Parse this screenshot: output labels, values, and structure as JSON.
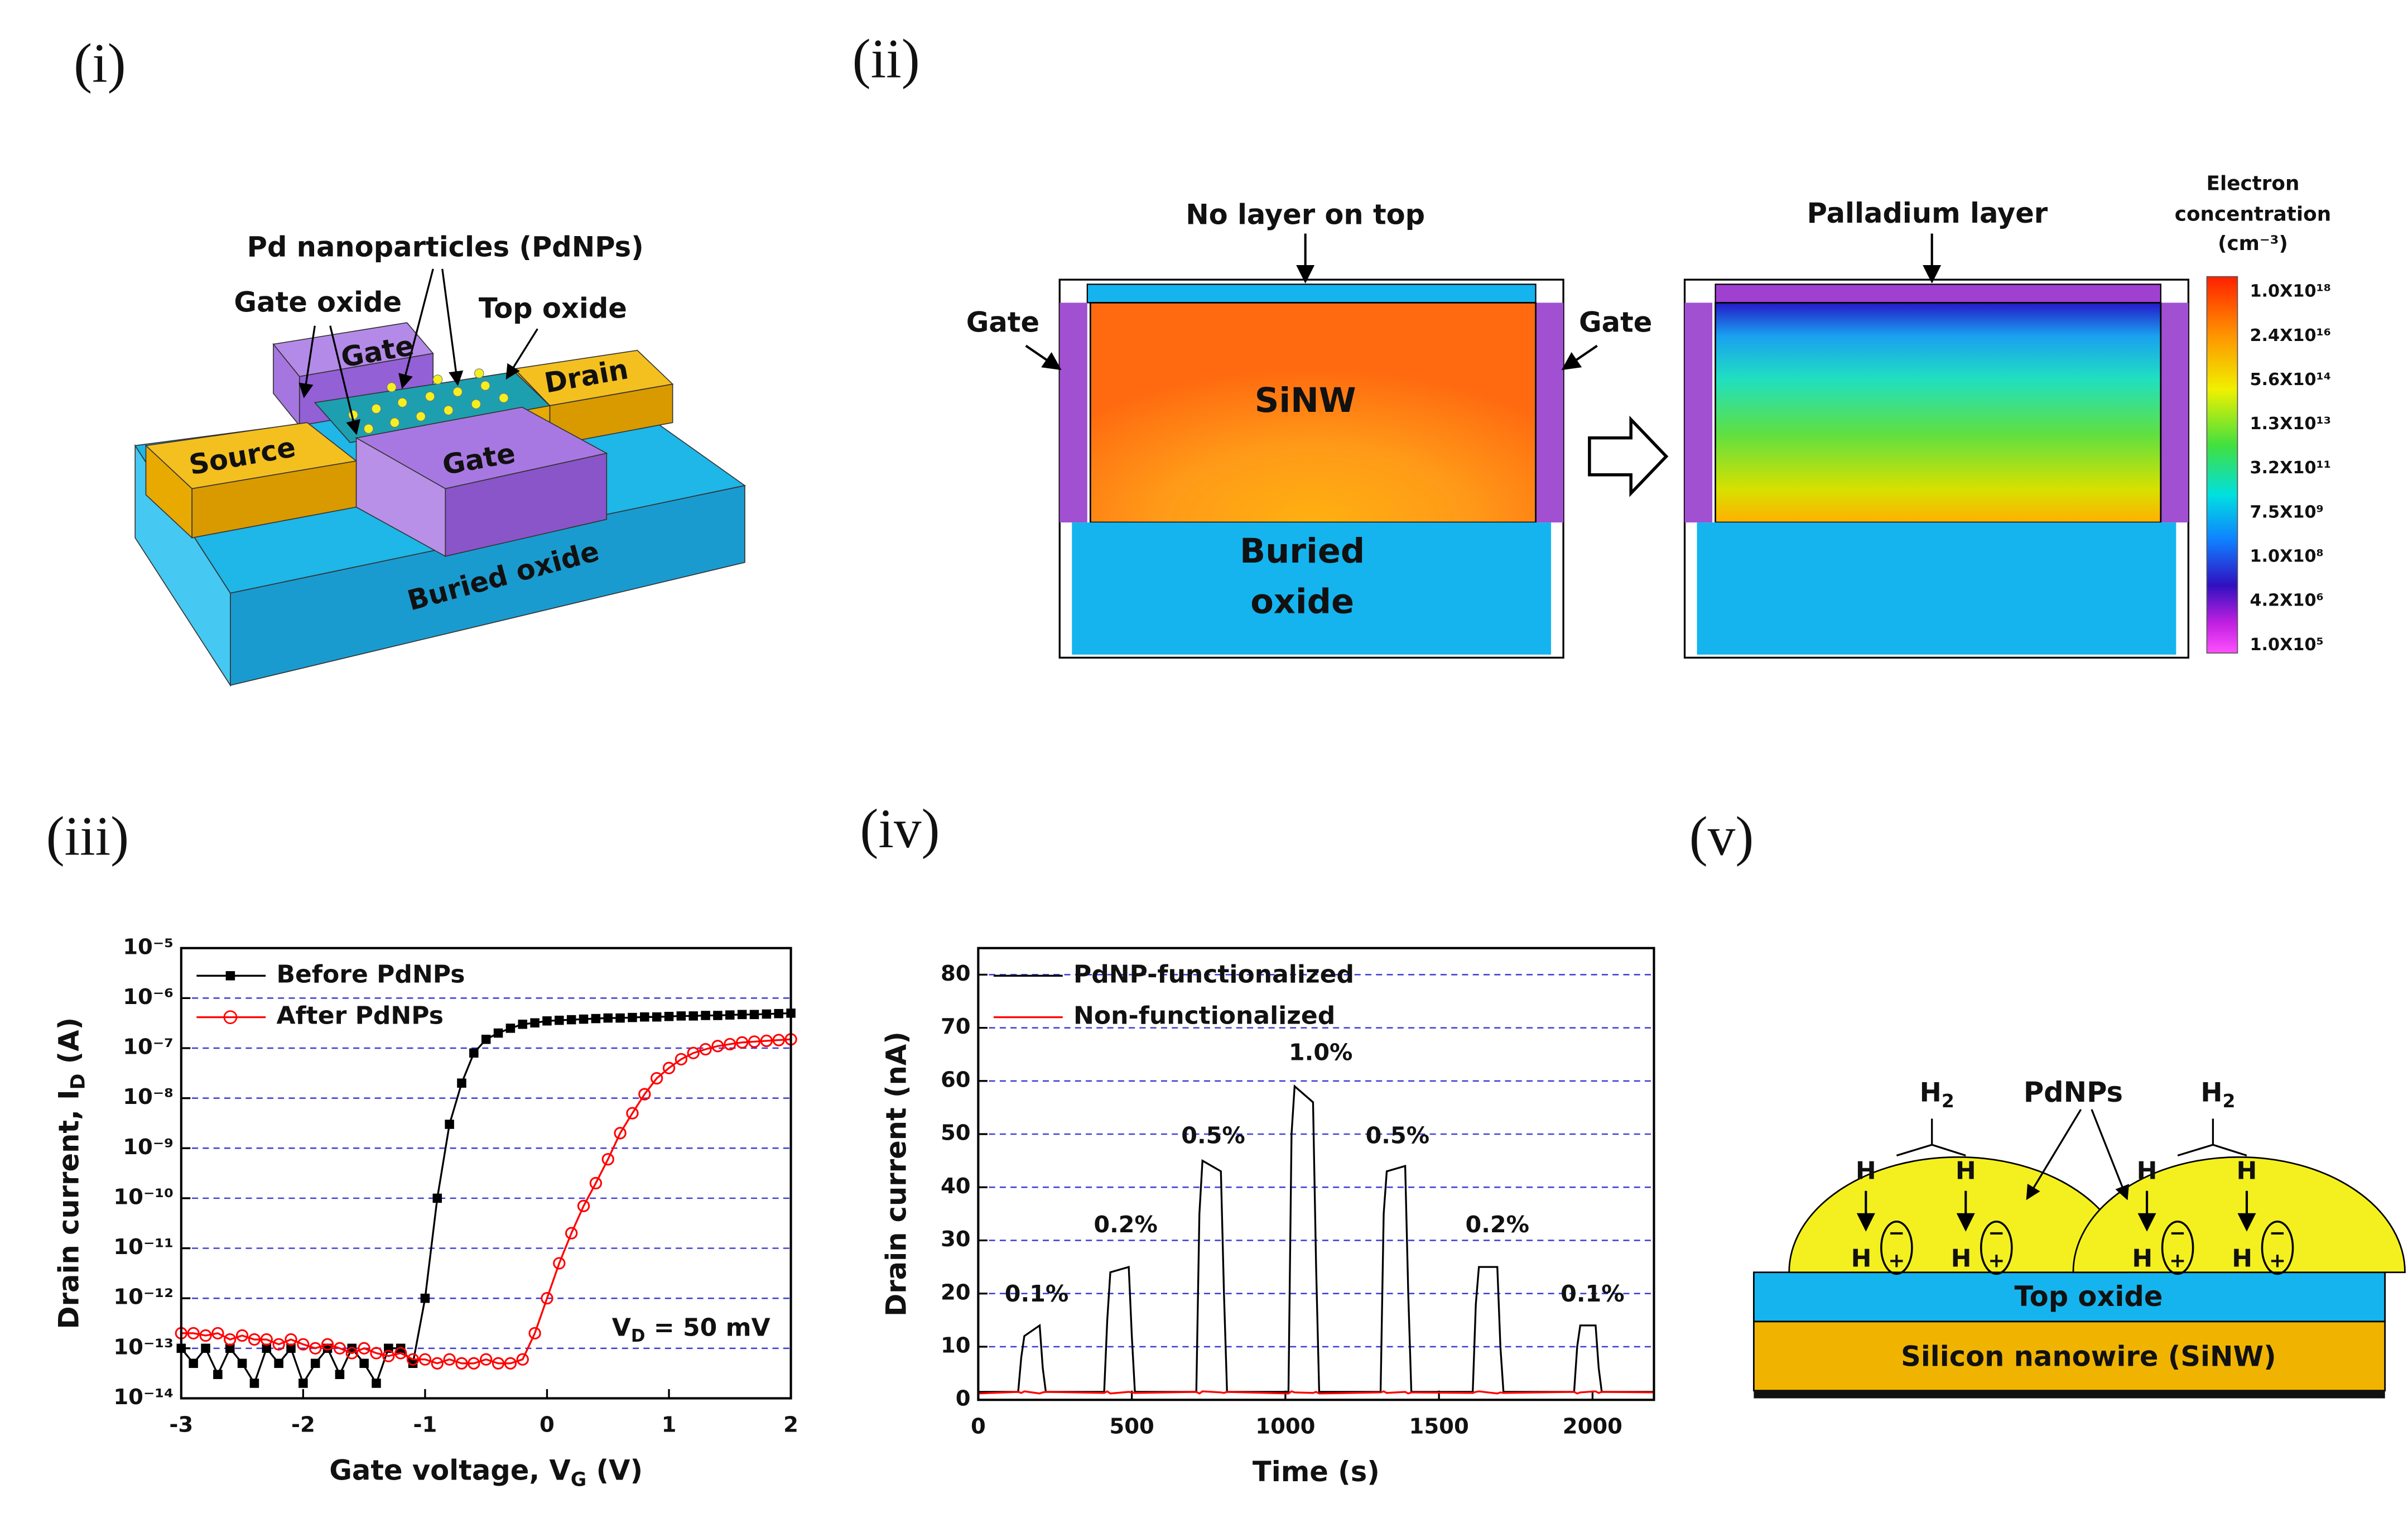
{
  "panel_labels": [
    "(i)",
    "(ii)",
    "(iii)",
    "(iv)",
    "(v)"
  ],
  "panel_i": {
    "title": "Pd nanoparticles (PdNPs)",
    "gate_oxide": "Gate oxide",
    "top_oxide": "Top oxide",
    "gate_back": "Gate",
    "drain": "Drain",
    "source": "Source",
    "gate_front": "Gate",
    "buried_oxide": "Buried oxide"
  },
  "panel_ii": {
    "left_title": "No layer on top",
    "gate_left": "Gate",
    "gate_right": "Gate",
    "sinw": "SiNW",
    "buried_oxide": [
      "Buried",
      "oxide"
    ],
    "right_title": "Palladium layer",
    "colorbar_title": [
      "Electron",
      "concentration",
      "(cm⁻³)"
    ],
    "colorbar_labels": [
      "1.0X10¹⁸",
      "2.4X10¹⁶",
      "5.6X10¹⁴",
      "1.3X10¹³",
      "3.2X10¹¹",
      "7.5X10⁹",
      "1.0X10⁸",
      "4.2X10⁶",
      "1.0X10⁵"
    ]
  },
  "chart_data": [
    {
      "type": "line",
      "y_scale": "log",
      "grid": true,
      "legend": "upper left",
      "x_label": {
        "text": "Gate voltage, V",
        "sub": "G",
        "rest": " (V)"
      },
      "y_label": {
        "text": "Drain current, I",
        "sub": "D",
        "rest": " (A)"
      },
      "annotation": {
        "text": "V",
        "sub": "D",
        "rest": " = 50 mV"
      },
      "xlim": [
        -3,
        2
      ],
      "xticks": [
        -3,
        -2,
        -1,
        0,
        1,
        2
      ],
      "ylim": [
        1e-14,
        1e-05
      ],
      "yticks": [
        {
          "value": 1e-14,
          "label": "10⁻¹⁴"
        },
        {
          "value": 1e-13,
          "label": "10⁻¹³"
        },
        {
          "value": 1e-12,
          "label": "10⁻¹²"
        },
        {
          "value": 1e-11,
          "label": "10⁻¹¹"
        },
        {
          "value": 1e-10,
          "label": "10⁻¹⁰"
        },
        {
          "value": 1e-09,
          "label": "10⁻⁹"
        },
        {
          "value": 1e-08,
          "label": "10⁻⁸"
        },
        {
          "value": 1e-07,
          "label": "10⁻⁷"
        },
        {
          "value": 1e-06,
          "label": "10⁻⁶"
        },
        {
          "value": 1e-05,
          "label": "10⁻⁵"
        }
      ],
      "x": [
        -3,
        -2.9,
        -2.8,
        -2.7,
        -2.6,
        -2.5,
        -2.4,
        -2.3,
        -2.2,
        -2.1,
        -2,
        -1.9,
        -1.8,
        -1.7,
        -1.6,
        -1.5,
        -1.4,
        -1.3,
        -1.2,
        -1.1,
        -1,
        -0.9,
        -0.8,
        -0.7,
        -0.6,
        -0.5,
        -0.4,
        -0.3,
        -0.2,
        -0.1,
        0,
        0.1,
        0.2,
        0.3,
        0.4,
        0.5,
        0.6,
        0.7,
        0.8,
        0.9,
        1,
        1.1,
        1.2,
        1.3,
        1.4,
        1.5,
        1.6,
        1.7,
        1.8,
        1.9,
        2
      ],
      "series": [
        {
          "name": "Before PdNPs",
          "color": "#000000",
          "marker": "square",
          "values": [
            1e-13,
            5e-14,
            1e-13,
            3e-14,
            1e-13,
            5e-14,
            2e-14,
            1e-13,
            5e-14,
            1e-13,
            2e-14,
            5e-14,
            1e-13,
            3e-14,
            1e-13,
            5e-14,
            2e-14,
            1e-13,
            1e-13,
            5e-14,
            1e-12,
            1e-10,
            3e-09,
            2e-08,
            8e-08,
            1.5e-07,
            2e-07,
            2.5e-07,
            3e-07,
            3.2e-07,
            3.5e-07,
            3.6e-07,
            3.7e-07,
            3.8e-07,
            3.9e-07,
            4e-07,
            4e-07,
            4.1e-07,
            4.2e-07,
            4.2e-07,
            4.3e-07,
            4.4e-07,
            4.4e-07,
            4.5e-07,
            4.5e-07,
            4.6e-07,
            4.7e-07,
            4.7e-07,
            4.8e-07,
            4.9e-07,
            5e-07
          ]
        },
        {
          "name": "After PdNPs",
          "color": "#ff0000",
          "marker": "circle-open",
          "values": [
            2e-13,
            2e-13,
            1.8e-13,
            2e-13,
            1.5e-13,
            1.8e-13,
            1.5e-13,
            1.5e-13,
            1.2e-13,
            1.5e-13,
            1.2e-13,
            1e-13,
            1.2e-13,
            1e-13,
            8e-14,
            1e-13,
            8e-14,
            7e-14,
            8e-14,
            6e-14,
            6e-14,
            5e-14,
            6e-14,
            5e-14,
            5e-14,
            6e-14,
            5e-14,
            5e-14,
            6e-14,
            2e-13,
            1e-12,
            5e-12,
            2e-11,
            7e-11,
            2e-10,
            6e-10,
            2e-09,
            5e-09,
            1.2e-08,
            2.5e-08,
            4e-08,
            6e-08,
            8e-08,
            9.5e-08,
            1.1e-07,
            1.2e-07,
            1.3e-07,
            1.35e-07,
            1.4e-07,
            1.45e-07,
            1.5e-07
          ]
        }
      ]
    },
    {
      "type": "line",
      "grid": true,
      "legend": "upper left",
      "x_label": "Time (s)",
      "y_label": "Drain current (nA)",
      "annotations": [
        "0.1%",
        "0.2%",
        "0.5%",
        "1.0%",
        "0.5%",
        "0.2%",
        "0.1%"
      ],
      "xlim": [
        0,
        2200
      ],
      "xticks": [
        0,
        500,
        1000,
        1500,
        2000
      ],
      "ylim": [
        0,
        85
      ],
      "yticks": [
        0,
        10,
        20,
        30,
        40,
        50,
        60,
        70,
        80
      ],
      "x": [
        0,
        130,
        140,
        150,
        200,
        210,
        220,
        410,
        420,
        430,
        490,
        500,
        510,
        710,
        720,
        730,
        790,
        800,
        810,
        1010,
        1020,
        1030,
        1090,
        1100,
        1110,
        1310,
        1320,
        1330,
        1390,
        1400,
        1410,
        1610,
        1620,
        1630,
        1690,
        1700,
        1710,
        1940,
        1950,
        1960,
        2010,
        2020,
        2030,
        2200
      ],
      "series": [
        {
          "name": "PdNP-functionalized",
          "color": "#000000",
          "values": [
            1.5,
            1.5,
            8,
            12,
            14,
            6,
            1.5,
            1.5,
            15,
            24,
            25,
            12,
            1.5,
            1.5,
            35,
            45,
            43,
            20,
            1.5,
            1.5,
            50,
            59,
            56,
            25,
            1.5,
            1.5,
            35,
            43,
            44,
            20,
            1.5,
            1.5,
            18,
            25,
            25,
            10,
            1.5,
            1.5,
            10,
            14,
            14,
            6,
            1.5,
            1.5
          ]
        },
        {
          "name": "Non-functionalized",
          "color": "#ff0000",
          "values": [
            1.2,
            1.5,
            1.3,
            1.6,
            1.2,
            1.4,
            1.5,
            1.3,
            1.6,
            1.2,
            1.5,
            1.4,
            1.3,
            1.5,
            1.2,
            1.6,
            1.4,
            1.3,
            1.5,
            1.2,
            1.6,
            1.4,
            1.3,
            1.5,
            1.2,
            1.4,
            1.6,
            1.3,
            1.5,
            1.2,
            1.4,
            1.3,
            1.5,
            1.6,
            1.2,
            1.4,
            1.3,
            1.5,
            1.2,
            1.4,
            1.6,
            1.3,
            1.5,
            1.4
          ]
        }
      ]
    }
  ],
  "panel_v": {
    "pdnps": "PdNPs",
    "top_oxide": "Top oxide",
    "sinw": "Silicon nanowire (SiNW)",
    "domes": [
      {
        "h2": [
          "H",
          "2"
        ],
        "h_top": [
          "H",
          "H"
        ],
        "h_bottom": [
          "H",
          "H"
        ],
        "charges": [
          [
            "−",
            "+"
          ],
          [
            "−",
            "+"
          ]
        ]
      },
      {
        "h2": [
          "H",
          "2"
        ],
        "h_top": [
          "H",
          "H"
        ],
        "h_bottom": [
          "H",
          "H"
        ],
        "charges": [
          [
            "−",
            "+"
          ],
          [
            "−",
            "+"
          ]
        ]
      }
    ]
  }
}
